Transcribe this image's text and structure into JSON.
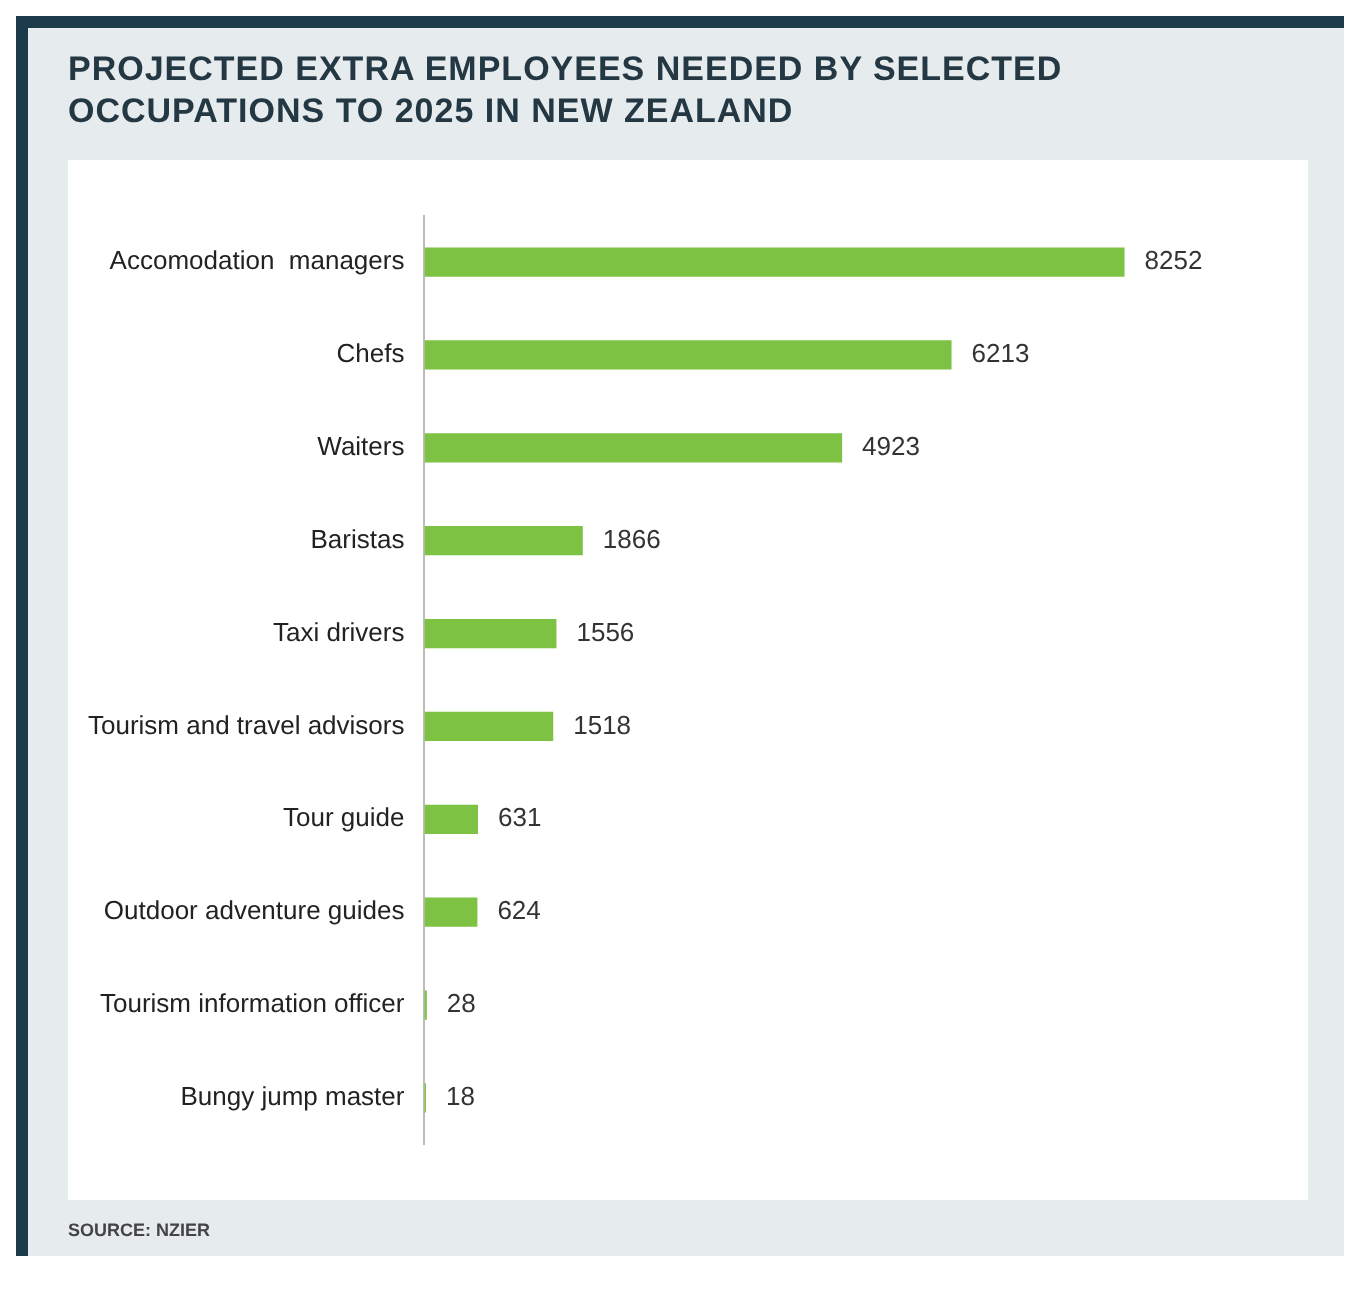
{
  "chart_data": {
    "type": "bar",
    "orientation": "horizontal",
    "title": "PROJECTED EXTRA EMPLOYEES NEEDED BY SELECTED OCCUPATIONS TO 2025 IN NEW ZEALAND",
    "categories": [
      "Accomodation  managers",
      "Chefs",
      "Waiters",
      "Baristas",
      "Taxi drivers",
      "Tourism and travel advisors",
      "Tour guide",
      "Outdoor adventure guides",
      "Tourism information officer",
      "Bungy jump master"
    ],
    "values": [
      8252,
      6213,
      4923,
      1866,
      1556,
      1518,
      631,
      624,
      28,
      18
    ],
    "color": "#7dc242",
    "data_labels": true,
    "grid": false,
    "legend": false,
    "annotations": [
      "SOURCE: NZIER"
    ]
  }
}
